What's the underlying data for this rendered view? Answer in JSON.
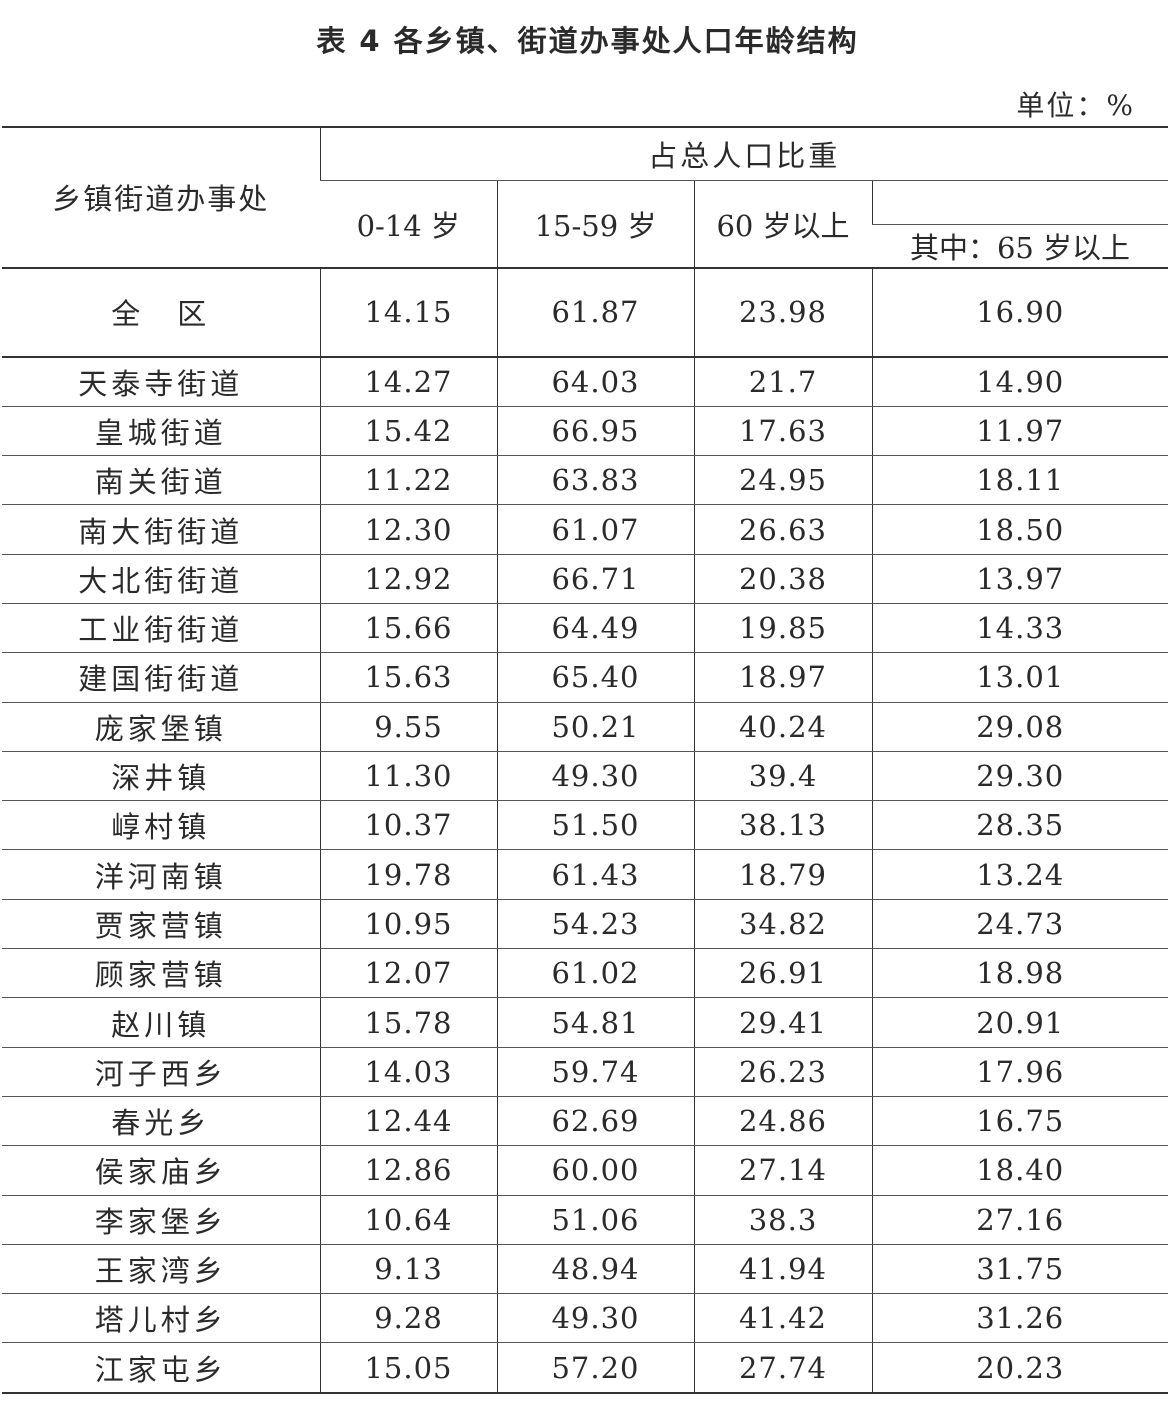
{
  "title": "表 4 各乡镇、街道办事处人口年龄结构",
  "unit": "单位：%",
  "header": {
    "name_col": "乡镇街道办事处",
    "group": "占总人口比重",
    "cols": [
      "0-14 岁",
      "15-59 岁",
      "60 岁以上",
      "其中：65 岁以上"
    ]
  },
  "total": {
    "name": "全　区",
    "values": [
      "14.15",
      "61.87",
      "23.98",
      "16.90"
    ]
  },
  "rows": [
    {
      "name": "天泰寺街道",
      "values": [
        "14.27",
        "64.03",
        "21.7",
        "14.90"
      ]
    },
    {
      "name": "皇城街道",
      "values": [
        "15.42",
        "66.95",
        "17.63",
        "11.97"
      ]
    },
    {
      "name": "南关街道",
      "values": [
        "11.22",
        "63.83",
        "24.95",
        "18.11"
      ]
    },
    {
      "name": "南大街街道",
      "values": [
        "12.30",
        "61.07",
        "26.63",
        "18.50"
      ]
    },
    {
      "name": "大北街街道",
      "values": [
        "12.92",
        "66.71",
        "20.38",
        "13.97"
      ]
    },
    {
      "name": "工业街街道",
      "values": [
        "15.66",
        "64.49",
        "19.85",
        "14.33"
      ]
    },
    {
      "name": "建国街街道",
      "values": [
        "15.63",
        "65.40",
        "18.97",
        "13.01"
      ]
    },
    {
      "name": "庞家堡镇",
      "values": [
        "9.55",
        "50.21",
        "40.24",
        "29.08"
      ]
    },
    {
      "name": "深井镇",
      "values": [
        "11.30",
        "49.30",
        "39.4",
        "29.30"
      ]
    },
    {
      "name": "崞村镇",
      "values": [
        "10.37",
        "51.50",
        "38.13",
        "28.35"
      ]
    },
    {
      "name": "洋河南镇",
      "values": [
        "19.78",
        "61.43",
        "18.79",
        "13.24"
      ]
    },
    {
      "name": "贾家营镇",
      "values": [
        "10.95",
        "54.23",
        "34.82",
        "24.73"
      ]
    },
    {
      "name": "顾家营镇",
      "values": [
        "12.07",
        "61.02",
        "26.91",
        "18.98"
      ]
    },
    {
      "name": "赵川镇",
      "values": [
        "15.78",
        "54.81",
        "29.41",
        "20.91"
      ]
    },
    {
      "name": "河子西乡",
      "values": [
        "14.03",
        "59.74",
        "26.23",
        "17.96"
      ]
    },
    {
      "name": "春光乡",
      "values": [
        "12.44",
        "62.69",
        "24.86",
        "16.75"
      ]
    },
    {
      "name": "侯家庙乡",
      "values": [
        "12.86",
        "60.00",
        "27.14",
        "18.40"
      ]
    },
    {
      "name": "李家堡乡",
      "values": [
        "10.64",
        "51.06",
        "38.3",
        "27.16"
      ]
    },
    {
      "name": "王家湾乡",
      "values": [
        "9.13",
        "48.94",
        "41.94",
        "31.75"
      ]
    },
    {
      "name": "塔儿村乡",
      "values": [
        "9.28",
        "49.30",
        "41.42",
        "31.26"
      ]
    },
    {
      "name": "江家屯乡",
      "values": [
        "15.05",
        "57.20",
        "27.74",
        "20.23"
      ]
    }
  ]
}
